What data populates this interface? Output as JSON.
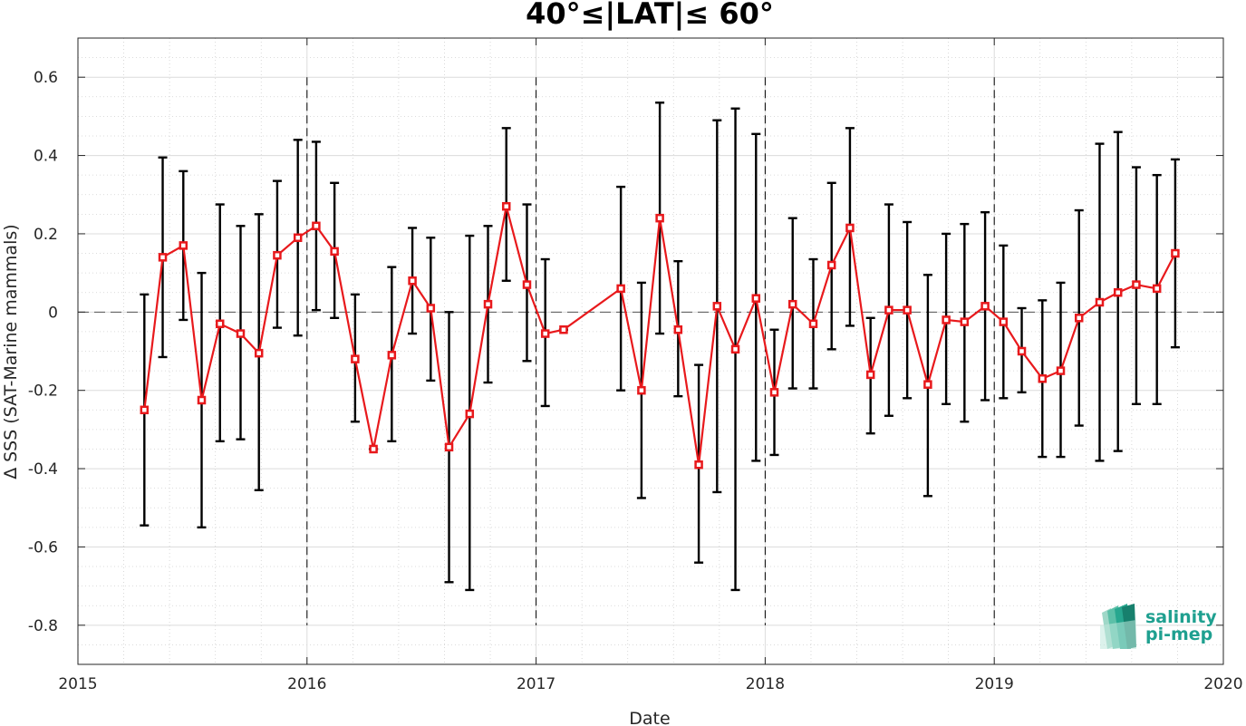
{
  "chart_data": {
    "type": "line",
    "title": "40°≤|LAT|≤ 60°",
    "xlabel": "Date",
    "ylabel": "∆ SSS (SAT-Marine mammals)",
    "xlim": [
      2015,
      2020
    ],
    "ylim": [
      -0.9,
      0.7
    ],
    "x_ticks": [
      2015,
      2016,
      2017,
      2018,
      2019,
      2020
    ],
    "x_tick_labels": [
      "2015",
      "2016",
      "2017",
      "2018",
      "2019",
      "2020"
    ],
    "y_ticks": [
      -0.8,
      -0.6,
      -0.4,
      -0.2,
      0,
      0.2,
      0.4,
      0.6
    ],
    "y_tick_labels": [
      "-0.8",
      "-0.6",
      "-0.4",
      "-0.2",
      "0",
      "0.2",
      "0.4",
      "0.6"
    ],
    "grid": true,
    "minor_grid": true,
    "zero_line": true,
    "year_separators": [
      2016,
      2017,
      2018,
      2019
    ],
    "line_color": "#e8191c",
    "errorbar_color": "#000000",
    "series": [
      {
        "x": [
          2015.29,
          2015.37,
          2015.46,
          2015.54,
          2015.62,
          2015.71,
          2015.79,
          2015.87,
          2015.96,
          2016.04,
          2016.12,
          2016.21,
          2016.29,
          2016.37,
          2016.46,
          2016.54,
          2016.62,
          2016.71,
          2016.79,
          2016.87,
          2016.96,
          2017.04,
          2017.12,
          2017.37,
          2017.46,
          2017.54,
          2017.62,
          2017.71,
          2017.79,
          2017.87,
          2017.96,
          2018.04,
          2018.12,
          2018.21,
          2018.29,
          2018.37,
          2018.46,
          2018.54,
          2018.62,
          2018.71,
          2018.79,
          2018.87,
          2018.96,
          2019.04,
          2019.12,
          2019.21,
          2019.29,
          2019.37,
          2019.46,
          2019.54,
          2019.62,
          2019.71,
          2019.79
        ],
        "y": [
          -0.25,
          0.14,
          0.17,
          -0.225,
          -0.03,
          -0.055,
          -0.105,
          0.145,
          0.19,
          0.22,
          0.155,
          -0.12,
          -0.35,
          -0.11,
          0.08,
          0.01,
          -0.345,
          -0.26,
          0.02,
          0.27,
          0.07,
          -0.055,
          -0.045,
          0.06,
          -0.2,
          0.24,
          -0.045,
          -0.39,
          0.015,
          -0.095,
          0.035,
          -0.205,
          0.02,
          -0.03,
          0.12,
          0.215,
          -0.16,
          0.005,
          0.005,
          -0.185,
          -0.02,
          -0.025,
          0.015,
          -0.025,
          -0.1,
          -0.17,
          -0.15,
          -0.015,
          0.025,
          0.05,
          0.07,
          0.06,
          0.15
        ],
        "y_low": [
          -0.545,
          -0.115,
          -0.02,
          -0.55,
          -0.33,
          -0.325,
          -0.455,
          -0.04,
          -0.06,
          0.005,
          -0.015,
          -0.28,
          -0.35,
          -0.33,
          -0.055,
          -0.175,
          -0.69,
          -0.71,
          -0.18,
          0.08,
          -0.125,
          -0.24,
          -0.045,
          -0.2,
          -0.475,
          -0.055,
          -0.215,
          -0.64,
          -0.46,
          -0.71,
          -0.38,
          -0.365,
          -0.195,
          -0.195,
          -0.095,
          -0.035,
          -0.31,
          -0.265,
          -0.22,
          -0.47,
          -0.235,
          -0.28,
          -0.225,
          -0.22,
          -0.205,
          -0.37,
          -0.37,
          -0.29,
          -0.38,
          -0.355,
          -0.235,
          -0.235,
          -0.09
        ],
        "y_high": [
          0.045,
          0.395,
          0.36,
          0.1,
          0.275,
          0.22,
          0.25,
          0.335,
          0.44,
          0.435,
          0.33,
          0.045,
          -0.35,
          0.115,
          0.215,
          0.19,
          0.0,
          0.195,
          0.22,
          0.47,
          0.275,
          0.135,
          -0.045,
          0.32,
          0.075,
          0.535,
          0.13,
          -0.135,
          0.49,
          0.52,
          0.455,
          -0.045,
          0.24,
          0.135,
          0.33,
          0.47,
          -0.015,
          0.275,
          0.23,
          0.095,
          0.2,
          0.225,
          0.255,
          0.17,
          0.01,
          0.03,
          0.075,
          0.26,
          0.43,
          0.46,
          0.37,
          0.35,
          0.39
        ]
      }
    ]
  },
  "logo": {
    "line1": "salinity",
    "line2": "pi-mep"
  }
}
